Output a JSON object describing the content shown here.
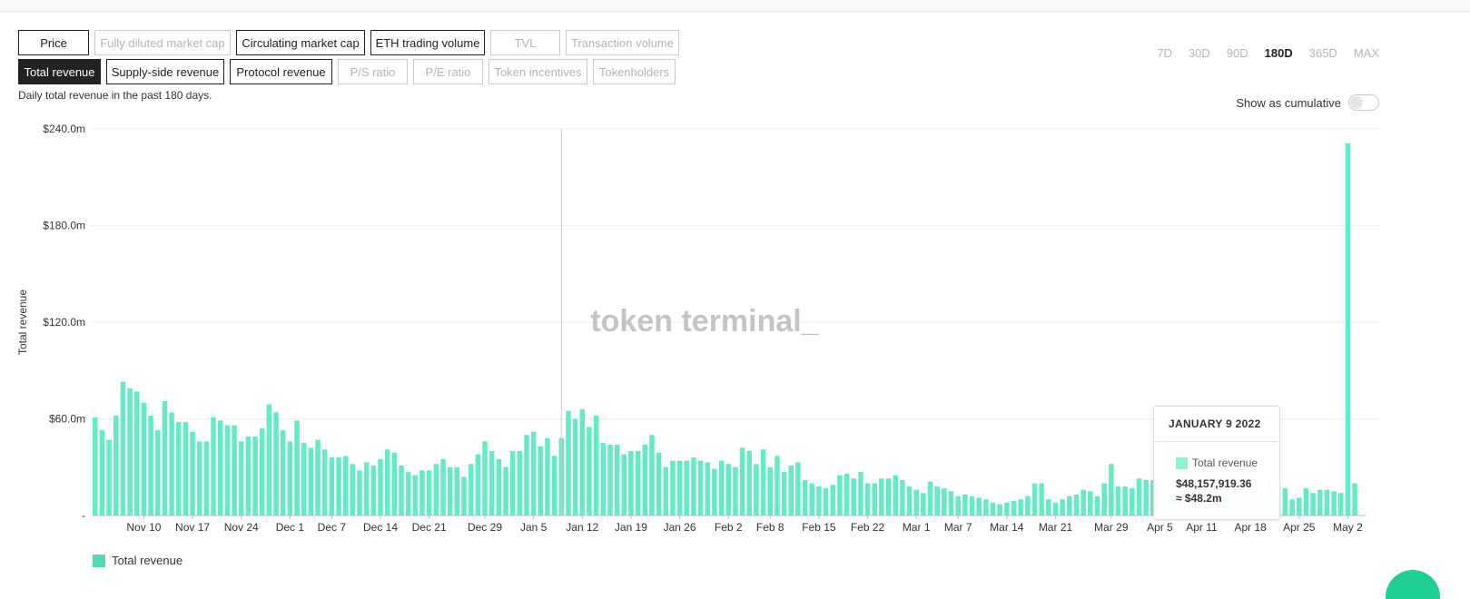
{
  "metrics_row1": [
    {
      "label": "Price",
      "state": "enabled"
    },
    {
      "label": "Fully diluted market cap",
      "state": "disabled"
    },
    {
      "label": "Circulating market cap",
      "state": "enabled"
    },
    {
      "label": "ETH trading volume",
      "state": "enabled"
    },
    {
      "label": "TVL",
      "state": "disabled"
    },
    {
      "label": "Transaction volume",
      "state": "disabled"
    }
  ],
  "metrics_row2": [
    {
      "label": "Total revenue",
      "state": "active"
    },
    {
      "label": "Supply-side revenue",
      "state": "enabled"
    },
    {
      "label": "Protocol revenue",
      "state": "enabled"
    },
    {
      "label": "P/S ratio",
      "state": "disabled"
    },
    {
      "label": "P/E ratio",
      "state": "disabled"
    },
    {
      "label": "Token incentives",
      "state": "disabled"
    },
    {
      "label": "Tokenholders",
      "state": "disabled"
    }
  ],
  "ranges": [
    {
      "label": "7D",
      "active": false
    },
    {
      "label": "30D",
      "active": false
    },
    {
      "label": "90D",
      "active": false
    },
    {
      "label": "180D",
      "active": true
    },
    {
      "label": "365D",
      "active": false
    },
    {
      "label": "MAX",
      "active": false
    }
  ],
  "description": "Daily total revenue in the past 180 days.",
  "cumulative_label": "Show as cumulative",
  "watermark": "token terminal_",
  "colors": {
    "bar": "#64ebc6",
    "bar_faded": "#d9f8ef",
    "legend": "#55d6b6"
  },
  "tooltip": {
    "title": "JANUARY 9 2022",
    "series": "Total revenue",
    "value": "$48,157,919.36",
    "approx": "≈ $48.2m"
  },
  "chart_data": {
    "type": "bar",
    "ylabel": "Total revenue",
    "ylim": [
      0,
      240000000
    ],
    "y_ticks": [
      {
        "value": 0,
        "label": "-"
      },
      {
        "value": 60000000,
        "label": "$60.0m"
      },
      {
        "value": 120000000,
        "label": "$120.0m"
      },
      {
        "value": 180000000,
        "label": "$180.0m"
      },
      {
        "value": 240000000,
        "label": "$240.0m"
      }
    ],
    "x_ticks": [
      {
        "index": 7,
        "label": "Nov 10"
      },
      {
        "index": 14,
        "label": "Nov 17"
      },
      {
        "index": 21,
        "label": "Nov 24"
      },
      {
        "index": 28,
        "label": "Dec 1"
      },
      {
        "index": 34,
        "label": "Dec 7"
      },
      {
        "index": 41,
        "label": "Dec 14"
      },
      {
        "index": 48,
        "label": "Dec 21"
      },
      {
        "index": 56,
        "label": "Dec 29"
      },
      {
        "index": 63,
        "label": "Jan 5"
      },
      {
        "index": 70,
        "label": "Jan 12"
      },
      {
        "index": 77,
        "label": "Jan 19"
      },
      {
        "index": 84,
        "label": "Jan 26"
      },
      {
        "index": 91,
        "label": "Feb 2"
      },
      {
        "index": 97,
        "label": "Feb 8"
      },
      {
        "index": 104,
        "label": "Feb 15"
      },
      {
        "index": 111,
        "label": "Feb 22"
      },
      {
        "index": 118,
        "label": "Mar 1"
      },
      {
        "index": 124,
        "label": "Mar 7"
      },
      {
        "index": 131,
        "label": "Mar 14"
      },
      {
        "index": 138,
        "label": "Mar 21"
      },
      {
        "index": 146,
        "label": "Mar 29"
      },
      {
        "index": 153,
        "label": "Apr 5"
      },
      {
        "index": 159,
        "label": "Apr 11"
      },
      {
        "index": 166,
        "label": "Apr 18"
      },
      {
        "index": 173,
        "label": "Apr 25"
      },
      {
        "index": 180,
        "label": "May 2"
      }
    ],
    "highlight_index": 67,
    "series": [
      {
        "name": "Total revenue",
        "values": [
          61,
          53,
          47,
          62,
          83,
          79,
          77,
          70,
          62,
          53,
          71,
          64,
          58,
          58,
          52,
          46,
          46,
          61,
          59,
          56,
          56,
          46,
          49,
          49,
          54,
          69,
          64,
          53,
          46,
          59,
          45,
          42,
          47,
          41,
          36,
          36,
          37,
          32,
          28,
          33,
          31,
          35,
          41,
          39,
          31,
          27,
          25,
          28,
          28,
          32,
          35,
          30,
          30,
          24,
          32,
          38,
          46,
          40,
          35,
          30,
          40,
          40,
          50,
          52,
          43,
          48,
          37,
          48,
          65,
          60,
          66,
          55,
          62,
          45,
          44,
          44,
          38,
          40,
          40,
          44,
          50,
          39,
          30,
          34,
          34,
          34,
          36,
          34,
          33,
          29,
          34,
          32,
          30,
          42,
          40,
          32,
          41,
          30,
          37,
          27,
          31,
          33,
          22,
          20,
          18,
          17,
          19,
          25,
          26,
          23,
          27,
          20,
          20,
          23,
          23,
          25,
          22,
          18,
          16,
          14,
          21,
          18,
          17,
          15,
          12,
          13,
          12,
          11,
          10,
          8,
          7,
          8,
          9,
          10,
          12,
          20,
          20,
          10,
          8,
          10,
          12,
          13,
          16,
          15,
          12,
          20,
          32,
          18,
          18,
          17,
          23,
          22,
          22,
          14,
          47,
          20,
          18,
          15,
          23,
          21,
          19,
          18,
          14,
          13,
          15,
          13,
          11,
          11,
          12,
          23,
          21,
          17,
          10,
          11,
          17,
          14,
          16,
          16,
          15,
          14,
          231,
          20
        ]
      }
    ]
  }
}
